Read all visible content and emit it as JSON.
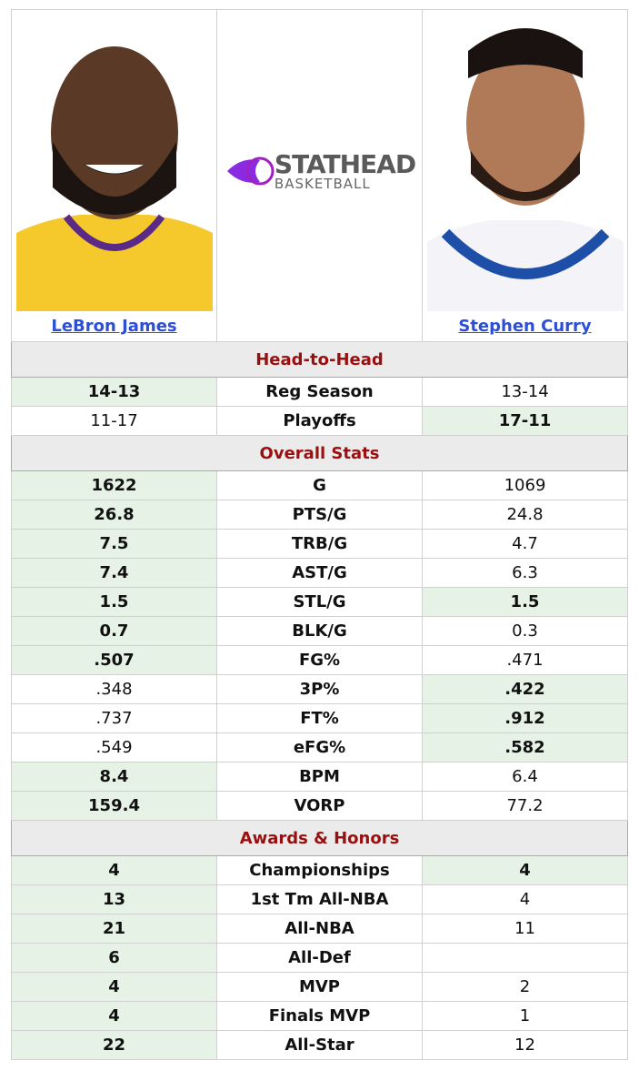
{
  "players": [
    {
      "name": "LeBron James"
    },
    {
      "name": "Stephen Curry"
    }
  ],
  "logo": {
    "title": "STATHEAD",
    "subtitle": "BASKETBALL"
  },
  "sections": [
    {
      "title": "Head-to-Head",
      "rows": [
        {
          "label": "Reg Season",
          "left": "14-13",
          "right": "13-14",
          "winner": "left"
        },
        {
          "label": "Playoffs",
          "left": "11-17",
          "right": "17-11",
          "winner": "right"
        }
      ]
    },
    {
      "title": "Overall Stats",
      "rows": [
        {
          "label": "G",
          "left": "1622",
          "right": "1069",
          "winner": "left"
        },
        {
          "label": "PTS/G",
          "left": "26.8",
          "right": "24.8",
          "winner": "left"
        },
        {
          "label": "TRB/G",
          "left": "7.5",
          "right": "4.7",
          "winner": "left"
        },
        {
          "label": "AST/G",
          "left": "7.4",
          "right": "6.3",
          "winner": "left"
        },
        {
          "label": "STL/G",
          "left": "1.5",
          "right": "1.5",
          "winner": "both"
        },
        {
          "label": "BLK/G",
          "left": "0.7",
          "right": "0.3",
          "winner": "left"
        },
        {
          "label": "FG%",
          "left": ".507",
          "right": ".471",
          "winner": "left"
        },
        {
          "label": "3P%",
          "left": ".348",
          "right": ".422",
          "winner": "right"
        },
        {
          "label": "FT%",
          "left": ".737",
          "right": ".912",
          "winner": "right"
        },
        {
          "label": "eFG%",
          "left": ".549",
          "right": ".582",
          "winner": "right"
        },
        {
          "label": "BPM",
          "left": "8.4",
          "right": "6.4",
          "winner": "left"
        },
        {
          "label": "VORP",
          "left": "159.4",
          "right": "77.2",
          "winner": "left"
        }
      ]
    },
    {
      "title": "Awards & Honors",
      "rows": [
        {
          "label": "Championships",
          "left": "4",
          "right": "4",
          "winner": "both"
        },
        {
          "label": "1st Tm All-NBA",
          "left": "13",
          "right": "4",
          "winner": "left"
        },
        {
          "label": "All-NBA",
          "left": "21",
          "right": "11",
          "winner": "left"
        },
        {
          "label": "All-Def",
          "left": "6",
          "right": null,
          "winner": "left"
        },
        {
          "label": "MVP",
          "left": "4",
          "right": "2",
          "winner": "left"
        },
        {
          "label": "Finals MVP",
          "left": "4",
          "right": "1",
          "winner": "left"
        },
        {
          "label": "All-Star",
          "left": "22",
          "right": "12",
          "winner": "left"
        }
      ]
    }
  ]
}
